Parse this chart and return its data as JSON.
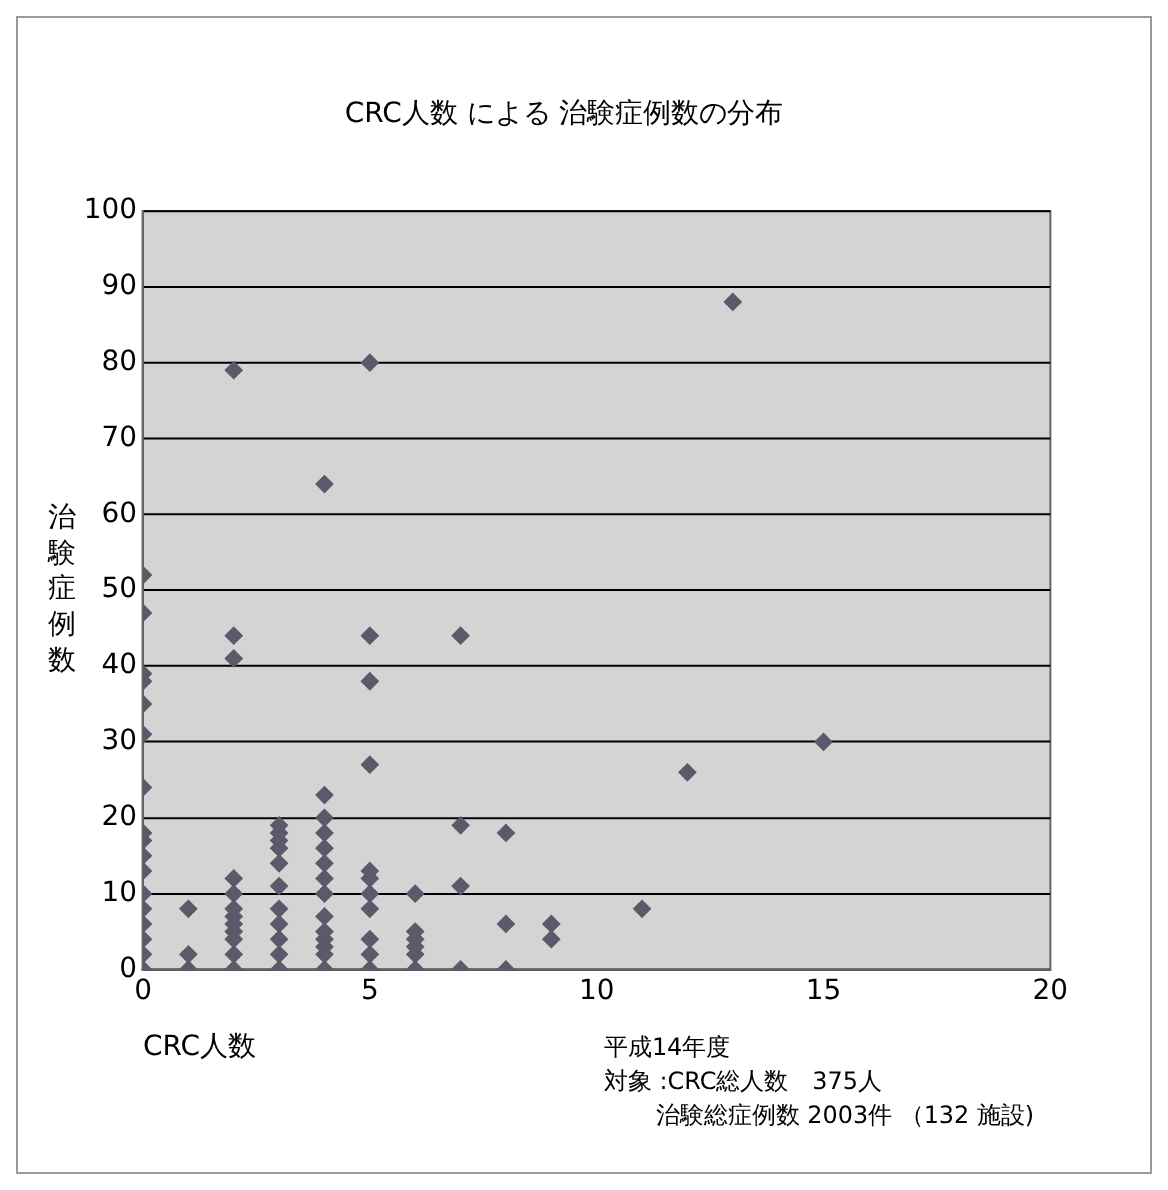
{
  "chart_data": {
    "type": "scatter",
    "title": "CRC人数 による 治験症例数の分布",
    "xlabel": "CRC人数",
    "ylabel": "治験症例数",
    "x": [
      0,
      0,
      0,
      0,
      0,
      0,
      0,
      0,
      0,
      0,
      0,
      0,
      0,
      0,
      0,
      0,
      0,
      1,
      1,
      1,
      2,
      2,
      2,
      2,
      2,
      2,
      2,
      2,
      2,
      2,
      2,
      2,
      3,
      3,
      3,
      3,
      3,
      3,
      3,
      3,
      3,
      3,
      3,
      4,
      4,
      4,
      4,
      4,
      4,
      4,
      4,
      4,
      4,
      4,
      4,
      4,
      4,
      5,
      5,
      5,
      5,
      5,
      5,
      5,
      5,
      5,
      5,
      5,
      6,
      6,
      6,
      6,
      6,
      6,
      7,
      7,
      7,
      7,
      8,
      8,
      8,
      9,
      9,
      11,
      12,
      13,
      15
    ],
    "series": [
      {
        "color": "#5a5a6a",
        "values": [
          0,
          2,
          4,
          6,
          8,
          10,
          13,
          15,
          17,
          18,
          24,
          31,
          35,
          38,
          39,
          47,
          52,
          0,
          2,
          8,
          0,
          2,
          4,
          5,
          6,
          7,
          8,
          10,
          12,
          41,
          44,
          79,
          0,
          2,
          4,
          6,
          8,
          11,
          14,
          16,
          17,
          18,
          19,
          0,
          2,
          3,
          4,
          5,
          7,
          10,
          12,
          14,
          16,
          18,
          20,
          23,
          64,
          0,
          2,
          4,
          8,
          10,
          12,
          13,
          27,
          38,
          44,
          80,
          0,
          2,
          3,
          4,
          5,
          10,
          0,
          11,
          19,
          44,
          0,
          6,
          18,
          4,
          6,
          8,
          26,
          88,
          30
        ]
      }
    ],
    "xlim": [
      0,
      20
    ],
    "xticks": [
      0,
      5,
      10,
      15,
      20
    ],
    "ylim": [
      0,
      100
    ],
    "yticks": [
      0,
      10,
      20,
      30,
      40,
      50,
      60,
      70,
      80,
      90,
      100
    ],
    "grid": "y",
    "marker": "diamond",
    "legend": false,
    "annotations": [
      "平成14年度",
      "対象 :CRC総人数　375人",
      "治験総症例数 2003件 （132 施設)"
    ]
  }
}
